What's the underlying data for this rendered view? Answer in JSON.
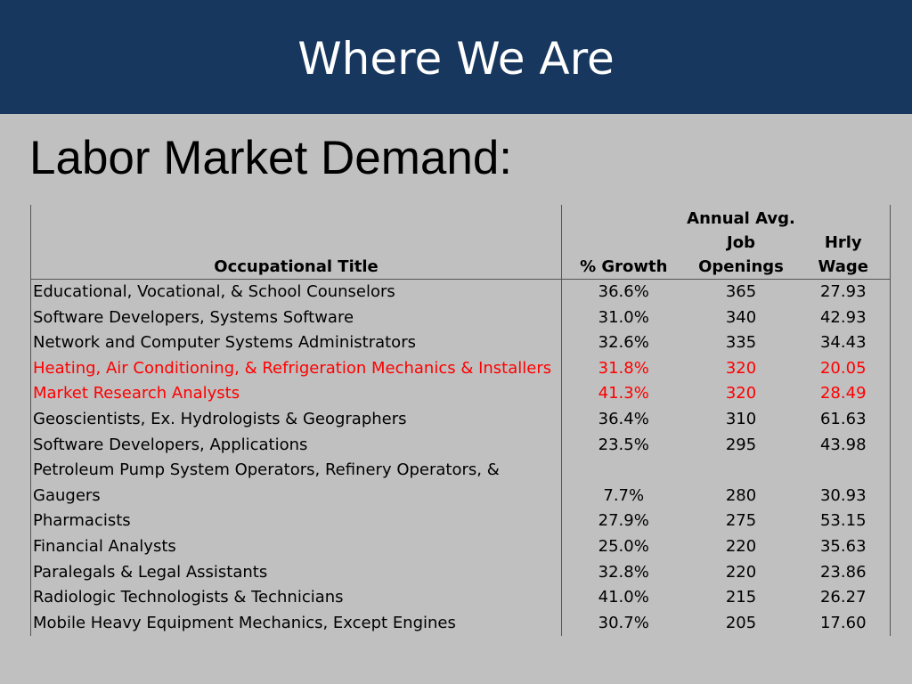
{
  "header": {
    "title": "Where We Are"
  },
  "section": {
    "title": "Labor Market Demand:"
  },
  "table": {
    "columns": {
      "title": "Occupational Title",
      "growth": "% Growth",
      "openings_line1": "Annual Avg.",
      "openings_line2": "Job",
      "openings_line3": "Openings",
      "wage": "Hrly Wage"
    },
    "highlight_color": "#ff0000",
    "rows": [
      {
        "title": "Educational, Vocational, & School Counselors",
        "growth": "36.6%",
        "openings": "365",
        "wage": "27.93",
        "highlighted": false
      },
      {
        "title": "Software Developers, Systems Software",
        "growth": "31.0%",
        "openings": "340",
        "wage": "42.93",
        "highlighted": false
      },
      {
        "title": "Network and Computer Systems Administrators",
        "growth": "32.6%",
        "openings": "335",
        "wage": "34.43",
        "highlighted": false
      },
      {
        "title": "Heating, Air Conditioning, & Refrigeration Mechanics & Installers",
        "growth": "31.8%",
        "openings": "320",
        "wage": "20.05",
        "highlighted": true
      },
      {
        "title": "Market Research Analysts",
        "growth": "41.3%",
        "openings": "320",
        "wage": "28.49",
        "highlighted": true
      },
      {
        "title": "Geoscientists, Ex. Hydrologists & Geographers",
        "growth": "36.4%",
        "openings": "310",
        "wage": "61.63",
        "highlighted": false
      },
      {
        "title": "Software Developers, Applications",
        "growth": "23.5%",
        "openings": "295",
        "wage": "43.98",
        "highlighted": false
      },
      {
        "title": "Petroleum Pump System Operators, Refinery Operators, & Gaugers",
        "growth": "7.7%",
        "openings": "280",
        "wage": "30.93",
        "highlighted": false
      },
      {
        "title": "Pharmacists",
        "growth": "27.9%",
        "openings": "275",
        "wage": "53.15",
        "highlighted": false
      },
      {
        "title": "Financial Analysts",
        "growth": "25.0%",
        "openings": "220",
        "wage": "35.63",
        "highlighted": false
      },
      {
        "title": "Paralegals & Legal Assistants",
        "growth": "32.8%",
        "openings": "220",
        "wage": "23.86",
        "highlighted": false
      },
      {
        "title": "Radiologic Technologists & Technicians",
        "growth": "41.0%",
        "openings": "215",
        "wage": "26.27",
        "highlighted": false
      },
      {
        "title": "Mobile Heavy Equipment Mechanics, Except Engines",
        "growth": "30.7%",
        "openings": "205",
        "wage": "17.60",
        "highlighted": false
      }
    ]
  }
}
